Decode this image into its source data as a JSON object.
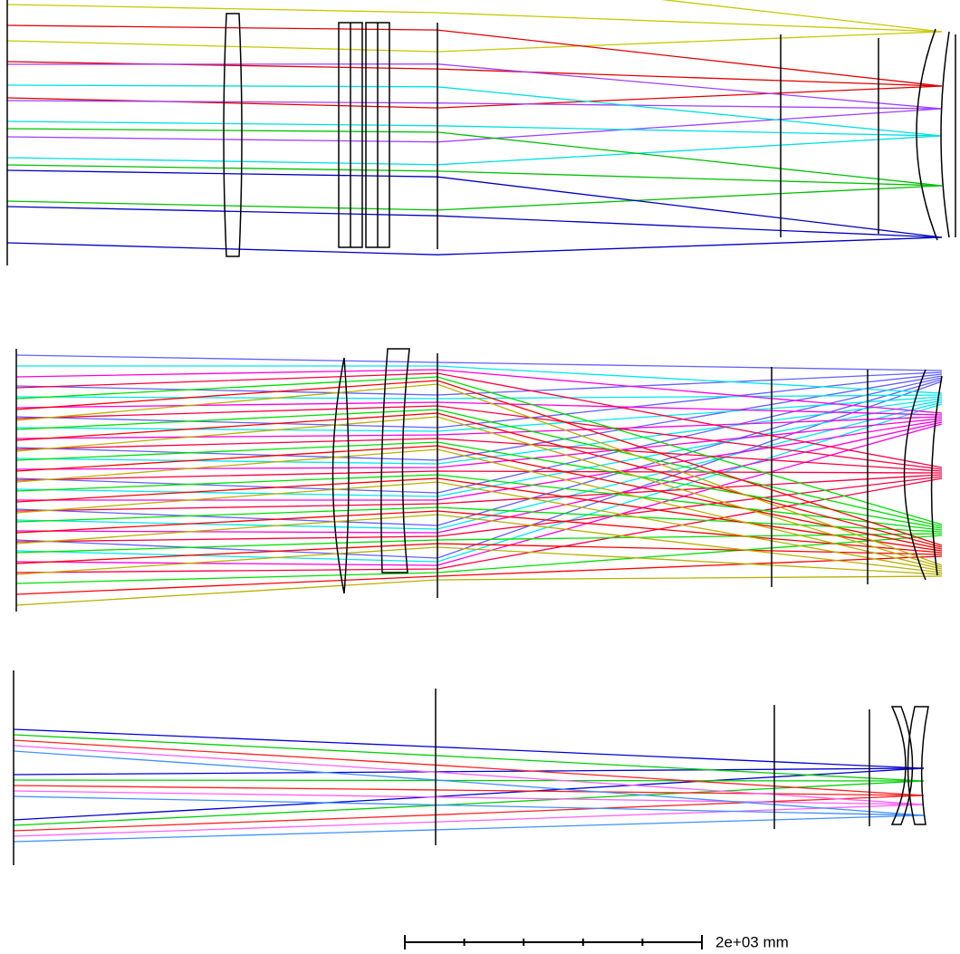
{
  "scale_bar": {
    "label": "2e+03 mm"
  }
}
